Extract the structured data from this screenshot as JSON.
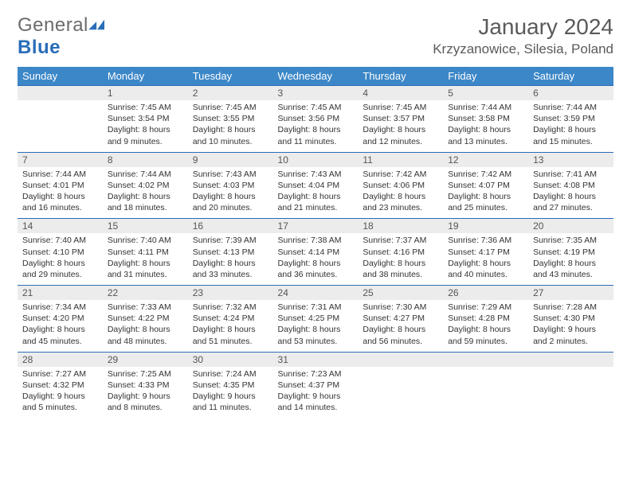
{
  "logo": {
    "text1": "General",
    "text2": "Blue"
  },
  "title": "January 2024",
  "location": "Krzyzanowice, Silesia, Poland",
  "colors": {
    "header_bg": "#3c87c7",
    "header_text": "#ffffff",
    "daynum_bg": "#ececec",
    "rule": "#2a6db8",
    "logo_gray": "#6b6b6b",
    "logo_blue": "#2a6db8"
  },
  "weekdays": [
    "Sunday",
    "Monday",
    "Tuesday",
    "Wednesday",
    "Thursday",
    "Friday",
    "Saturday"
  ],
  "weeks": [
    [
      null,
      {
        "n": "1",
        "sr": "Sunrise: 7:45 AM",
        "ss": "Sunset: 3:54 PM",
        "d1": "Daylight: 8 hours",
        "d2": "and 9 minutes."
      },
      {
        "n": "2",
        "sr": "Sunrise: 7:45 AM",
        "ss": "Sunset: 3:55 PM",
        "d1": "Daylight: 8 hours",
        "d2": "and 10 minutes."
      },
      {
        "n": "3",
        "sr": "Sunrise: 7:45 AM",
        "ss": "Sunset: 3:56 PM",
        "d1": "Daylight: 8 hours",
        "d2": "and 11 minutes."
      },
      {
        "n": "4",
        "sr": "Sunrise: 7:45 AM",
        "ss": "Sunset: 3:57 PM",
        "d1": "Daylight: 8 hours",
        "d2": "and 12 minutes."
      },
      {
        "n": "5",
        "sr": "Sunrise: 7:44 AM",
        "ss": "Sunset: 3:58 PM",
        "d1": "Daylight: 8 hours",
        "d2": "and 13 minutes."
      },
      {
        "n": "6",
        "sr": "Sunrise: 7:44 AM",
        "ss": "Sunset: 3:59 PM",
        "d1": "Daylight: 8 hours",
        "d2": "and 15 minutes."
      }
    ],
    [
      {
        "n": "7",
        "sr": "Sunrise: 7:44 AM",
        "ss": "Sunset: 4:01 PM",
        "d1": "Daylight: 8 hours",
        "d2": "and 16 minutes."
      },
      {
        "n": "8",
        "sr": "Sunrise: 7:44 AM",
        "ss": "Sunset: 4:02 PM",
        "d1": "Daylight: 8 hours",
        "d2": "and 18 minutes."
      },
      {
        "n": "9",
        "sr": "Sunrise: 7:43 AM",
        "ss": "Sunset: 4:03 PM",
        "d1": "Daylight: 8 hours",
        "d2": "and 20 minutes."
      },
      {
        "n": "10",
        "sr": "Sunrise: 7:43 AM",
        "ss": "Sunset: 4:04 PM",
        "d1": "Daylight: 8 hours",
        "d2": "and 21 minutes."
      },
      {
        "n": "11",
        "sr": "Sunrise: 7:42 AM",
        "ss": "Sunset: 4:06 PM",
        "d1": "Daylight: 8 hours",
        "d2": "and 23 minutes."
      },
      {
        "n": "12",
        "sr": "Sunrise: 7:42 AM",
        "ss": "Sunset: 4:07 PM",
        "d1": "Daylight: 8 hours",
        "d2": "and 25 minutes."
      },
      {
        "n": "13",
        "sr": "Sunrise: 7:41 AM",
        "ss": "Sunset: 4:08 PM",
        "d1": "Daylight: 8 hours",
        "d2": "and 27 minutes."
      }
    ],
    [
      {
        "n": "14",
        "sr": "Sunrise: 7:40 AM",
        "ss": "Sunset: 4:10 PM",
        "d1": "Daylight: 8 hours",
        "d2": "and 29 minutes."
      },
      {
        "n": "15",
        "sr": "Sunrise: 7:40 AM",
        "ss": "Sunset: 4:11 PM",
        "d1": "Daylight: 8 hours",
        "d2": "and 31 minutes."
      },
      {
        "n": "16",
        "sr": "Sunrise: 7:39 AM",
        "ss": "Sunset: 4:13 PM",
        "d1": "Daylight: 8 hours",
        "d2": "and 33 minutes."
      },
      {
        "n": "17",
        "sr": "Sunrise: 7:38 AM",
        "ss": "Sunset: 4:14 PM",
        "d1": "Daylight: 8 hours",
        "d2": "and 36 minutes."
      },
      {
        "n": "18",
        "sr": "Sunrise: 7:37 AM",
        "ss": "Sunset: 4:16 PM",
        "d1": "Daylight: 8 hours",
        "d2": "and 38 minutes."
      },
      {
        "n": "19",
        "sr": "Sunrise: 7:36 AM",
        "ss": "Sunset: 4:17 PM",
        "d1": "Daylight: 8 hours",
        "d2": "and 40 minutes."
      },
      {
        "n": "20",
        "sr": "Sunrise: 7:35 AM",
        "ss": "Sunset: 4:19 PM",
        "d1": "Daylight: 8 hours",
        "d2": "and 43 minutes."
      }
    ],
    [
      {
        "n": "21",
        "sr": "Sunrise: 7:34 AM",
        "ss": "Sunset: 4:20 PM",
        "d1": "Daylight: 8 hours",
        "d2": "and 45 minutes."
      },
      {
        "n": "22",
        "sr": "Sunrise: 7:33 AM",
        "ss": "Sunset: 4:22 PM",
        "d1": "Daylight: 8 hours",
        "d2": "and 48 minutes."
      },
      {
        "n": "23",
        "sr": "Sunrise: 7:32 AM",
        "ss": "Sunset: 4:24 PM",
        "d1": "Daylight: 8 hours",
        "d2": "and 51 minutes."
      },
      {
        "n": "24",
        "sr": "Sunrise: 7:31 AM",
        "ss": "Sunset: 4:25 PM",
        "d1": "Daylight: 8 hours",
        "d2": "and 53 minutes."
      },
      {
        "n": "25",
        "sr": "Sunrise: 7:30 AM",
        "ss": "Sunset: 4:27 PM",
        "d1": "Daylight: 8 hours",
        "d2": "and 56 minutes."
      },
      {
        "n": "26",
        "sr": "Sunrise: 7:29 AM",
        "ss": "Sunset: 4:28 PM",
        "d1": "Daylight: 8 hours",
        "d2": "and 59 minutes."
      },
      {
        "n": "27",
        "sr": "Sunrise: 7:28 AM",
        "ss": "Sunset: 4:30 PM",
        "d1": "Daylight: 9 hours",
        "d2": "and 2 minutes."
      }
    ],
    [
      {
        "n": "28",
        "sr": "Sunrise: 7:27 AM",
        "ss": "Sunset: 4:32 PM",
        "d1": "Daylight: 9 hours",
        "d2": "and 5 minutes."
      },
      {
        "n": "29",
        "sr": "Sunrise: 7:25 AM",
        "ss": "Sunset: 4:33 PM",
        "d1": "Daylight: 9 hours",
        "d2": "and 8 minutes."
      },
      {
        "n": "30",
        "sr": "Sunrise: 7:24 AM",
        "ss": "Sunset: 4:35 PM",
        "d1": "Daylight: 9 hours",
        "d2": "and 11 minutes."
      },
      {
        "n": "31",
        "sr": "Sunrise: 7:23 AM",
        "ss": "Sunset: 4:37 PM",
        "d1": "Daylight: 9 hours",
        "d2": "and 14 minutes."
      },
      null,
      null,
      null
    ]
  ]
}
